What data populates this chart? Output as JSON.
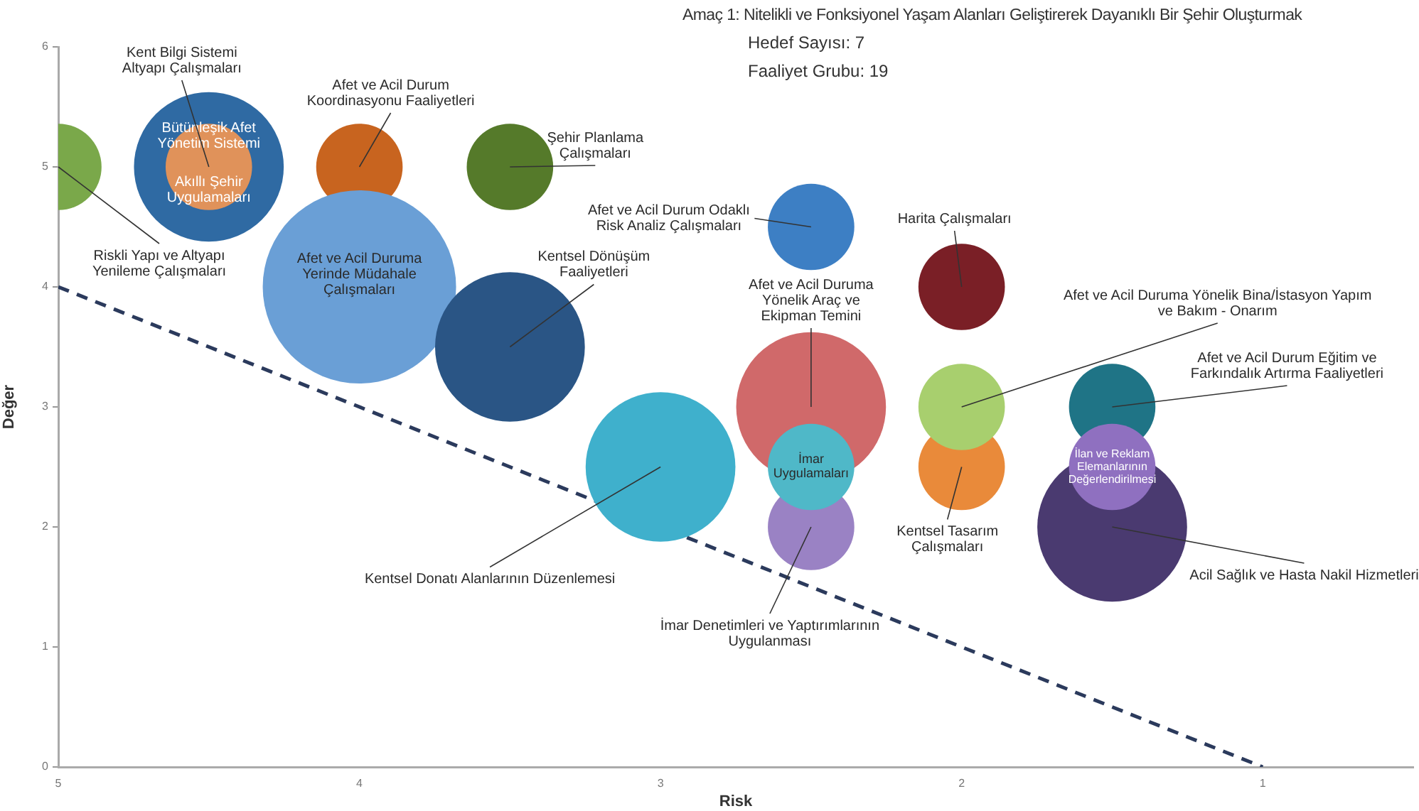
{
  "chart_data": {
    "type": "bubble",
    "title": "Amaç 1: Nitelikli ve Fonksiyonel Yaşam Alanları Geliştirerek Dayanıklı Bir Şehir Oluşturmak",
    "subtitle": "Hedef Sayısı: 7\nFaaliyet Grubu: 19",
    "xlabel": "Risk",
    "ylabel": "Değer",
    "xlim": [
      5,
      0.5
    ],
    "xticks": [
      5,
      4,
      3,
      2,
      1
    ],
    "ylim": [
      0,
      6
    ],
    "yticks": [
      0,
      1,
      2,
      3,
      4,
      5,
      6
    ],
    "grid": false,
    "legend": false,
    "series": [
      {
        "type": "bubble",
        "x": [
          5,
          4.5,
          4.5,
          4,
          3.5,
          4,
          3.5,
          2.5,
          2,
          2.5,
          3,
          2.5,
          2.5,
          2,
          2,
          1.5,
          1.5,
          1.5
        ],
        "values": [
          5,
          5,
          5,
          5,
          5,
          4,
          3.5,
          4.5,
          4,
          3,
          2.5,
          2,
          2.5,
          2.5,
          3,
          3,
          2,
          2.5
        ],
        "sizes": [
          0.2,
          0.6,
          0.2,
          0.2,
          0.2,
          1,
          0.6,
          0.2,
          0.2,
          0.6,
          0.6,
          0.2,
          0.2,
          0.2,
          0.2,
          0.2,
          0.6,
          0.2
        ],
        "colors": [
          "#7aa84a",
          "#2f6aa3",
          "#e0925a",
          "#c8641f",
          "#557a2a",
          "#6a9fd6",
          "#2a5585",
          "#3d7fc4",
          "#7a1f26",
          "#d0696a",
          "#3fb0cc",
          "#9a82c4",
          "#4fb8c8",
          "#e98a3a",
          "#a8cf6e",
          "#1f7486",
          "#4a3a70",
          "#8f70c0"
        ]
      },
      {
        "type": "line",
        "x": [
          5,
          1
        ],
        "values": [
          4,
          0
        ],
        "color": "#2b3a5c",
        "line_style": "dashed",
        "marker": "none"
      }
    ],
    "annotations": [
      {
        "text": "Riskli Yapı ve Altyapı Yenileme Çalışmaları",
        "x": 5,
        "y": 5
      },
      {
        "text": "Bütünleşik Afet Yönetim Sistemi",
        "x": 4.5,
        "y": 5
      },
      {
        "text": "Akıllı Şehir Uygulamaları",
        "x": 4.5,
        "y": 5
      },
      {
        "text": "Afet ve Acil Durum Koordinasyonu Faaliyetleri",
        "x": 4,
        "y": 5
      },
      {
        "text": "Şehir Planlama Çalışmaları",
        "x": 3.5,
        "y": 5
      },
      {
        "text": "Afet ve Acil Duruma Yerinde Müdahale Çalışmaları",
        "x": 4,
        "y": 4
      },
      {
        "text": "Kentsel Dönüşüm Faaliyetleri",
        "x": 3.5,
        "y": 3.5
      },
      {
        "text": "Afet ve Acil Durum Odaklı Risk Analiz Çalışmaları",
        "x": 2.5,
        "y": 4.5
      },
      {
        "text": "Harita Çalışmaları",
        "x": 2,
        "y": 4
      },
      {
        "text": "Afet ve Acil Duruma Yönelik Araç ve Ekipman Temini",
        "x": 2.5,
        "y": 3
      },
      {
        "text": "Kentsel Donatı Alanlarının Düzenlemesi",
        "x": 3,
        "y": 2.5
      },
      {
        "text": "İmar Denetimleri ve Yaptırımlarının Uygulanması",
        "x": 2.5,
        "y": 2
      },
      {
        "text": "İmar Uygulamaları",
        "x": 2.5,
        "y": 2.5
      },
      {
        "text": "Kentsel Tasarım Çalışmaları",
        "x": 2,
        "y": 2.5
      },
      {
        "text": "Afet ve Acil Duruma Yönelik Bina/İstasyon Yapım ve Bakım - Onarım",
        "x": 2,
        "y": 3
      },
      {
        "text": "Afet ve Acil Durum Eğitim ve Farkındalık Artırma Faaliyetleri",
        "x": 1.5,
        "y": 3
      },
      {
        "text": "Acil Sağlık ve Hasta Nakil Hizmetleri",
        "x": 1.5,
        "y": 2
      },
      {
        "text": "İlan ve Reklam Elemanlarının Değerlendirilmesi",
        "x": 1.5,
        "y": 2.5
      },
      {
        "text": "Kent Bilgi Sistemi Altyapı Çalışmaları",
        "x": 4.5,
        "y": 5
      }
    ]
  }
}
